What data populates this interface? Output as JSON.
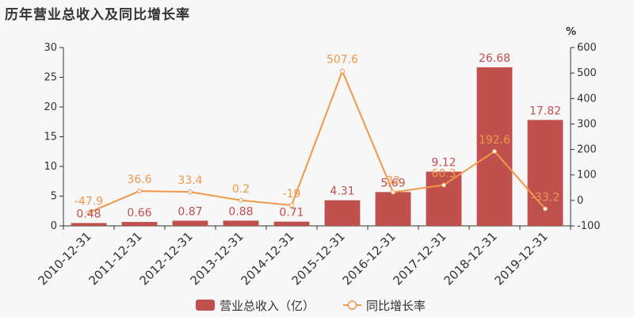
{
  "title": "历年营业总收入及同比增长率",
  "chart_data": {
    "type": "bar",
    "categories": [
      "2010-12-31",
      "2011-12-31",
      "2012-12-31",
      "2013-12-31",
      "2014-12-31",
      "2015-12-31",
      "2016-12-31",
      "2017-12-31",
      "2018-12-31",
      "2019-12-31"
    ],
    "series": [
      {
        "name": "营业总收入（亿）",
        "type": "bar",
        "axis": "left",
        "color": "#c0504d",
        "values": [
          0.48,
          0.66,
          0.87,
          0.88,
          0.71,
          4.31,
          5.69,
          9.12,
          26.68,
          17.82
        ],
        "labels": [
          "0.48",
          "0.66",
          "0.87",
          "0.88",
          "0.71",
          "4.31",
          "5.69",
          "9.12",
          "26.68",
          "17.82"
        ]
      },
      {
        "name": "同比增长率",
        "type": "line",
        "axis": "right",
        "color": "#f0974a",
        "values": [
          -47.9,
          36.6,
          33.4,
          0.2,
          -19,
          507.6,
          32,
          60.3,
          192.6,
          -33.2
        ],
        "labels": [
          "-47.9",
          "36.6",
          "33.4",
          "0.2",
          "-19",
          "507.6",
          "32",
          "60.3",
          "192.6",
          "-33.2"
        ]
      }
    ],
    "y_left": {
      "min": 0,
      "max": 30,
      "ticks": [
        "0",
        "5",
        "10",
        "15",
        "20",
        "25",
        "30"
      ]
    },
    "y_right": {
      "min": -100,
      "max": 600,
      "unit": "%",
      "ticks": [
        "-100",
        "0",
        "100",
        "200",
        "300",
        "400",
        "500",
        "600"
      ]
    },
    "legend": {
      "position": "bottom-center",
      "items": [
        "营业总收入（亿）",
        "同比增长率"
      ]
    }
  }
}
